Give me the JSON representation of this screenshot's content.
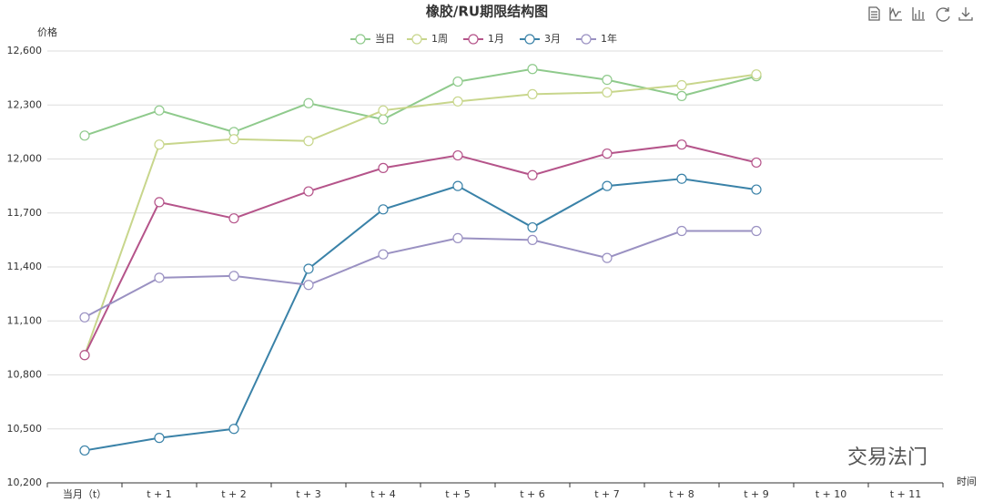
{
  "chart_data": {
    "type": "line",
    "title": "橡胶/RU期限结构图",
    "y_label": "价格",
    "x_label": "时间",
    "logo_text": "交易法门",
    "categories": [
      "当月（t）",
      "t + 1",
      "t + 2",
      "t + 3",
      "t + 4",
      "t + 5",
      "t + 6",
      "t + 7",
      "t + 8",
      "t + 9",
      "t + 10",
      "t + 11"
    ],
    "series": [
      {
        "name": "当日",
        "color": "#8fca8c",
        "values": [
          12130,
          12270,
          12150,
          12310,
          12220,
          12430,
          12500,
          12440,
          12350,
          12460,
          null,
          null
        ]
      },
      {
        "name": "1周",
        "color": "#c8d68c",
        "values": [
          10910,
          12080,
          12110,
          12100,
          12270,
          12320,
          12360,
          12370,
          12410,
          12470,
          null,
          null
        ]
      },
      {
        "name": "1月",
        "color": "#b5548a",
        "values": [
          10910,
          11760,
          11670,
          11820,
          11950,
          12020,
          11910,
          12030,
          12080,
          11980,
          null,
          null
        ]
      },
      {
        "name": "3月",
        "color": "#3a82a8",
        "values": [
          10380,
          10450,
          10500,
          11390,
          11720,
          11850,
          11620,
          11850,
          11890,
          11830,
          null,
          null
        ]
      },
      {
        "name": "1年",
        "color": "#9a91c2",
        "values": [
          11120,
          11340,
          11350,
          11300,
          11470,
          11560,
          11550,
          11450,
          11600,
          11600,
          null,
          null
        ]
      }
    ],
    "ylim": [
      10200,
      12600
    ],
    "yticks": [
      {
        "value": 10200,
        "label": "10,200"
      },
      {
        "value": 10500,
        "label": "10,500"
      },
      {
        "value": 10800,
        "label": "10,800"
      },
      {
        "value": 11100,
        "label": "11,100"
      },
      {
        "value": 11400,
        "label": "11,400"
      },
      {
        "value": 11700,
        "label": "11,700"
      },
      {
        "value": 12000,
        "label": "12,000"
      },
      {
        "value": 12300,
        "label": "12,300"
      },
      {
        "value": 12600,
        "label": "12,600"
      }
    ],
    "grid": true
  }
}
